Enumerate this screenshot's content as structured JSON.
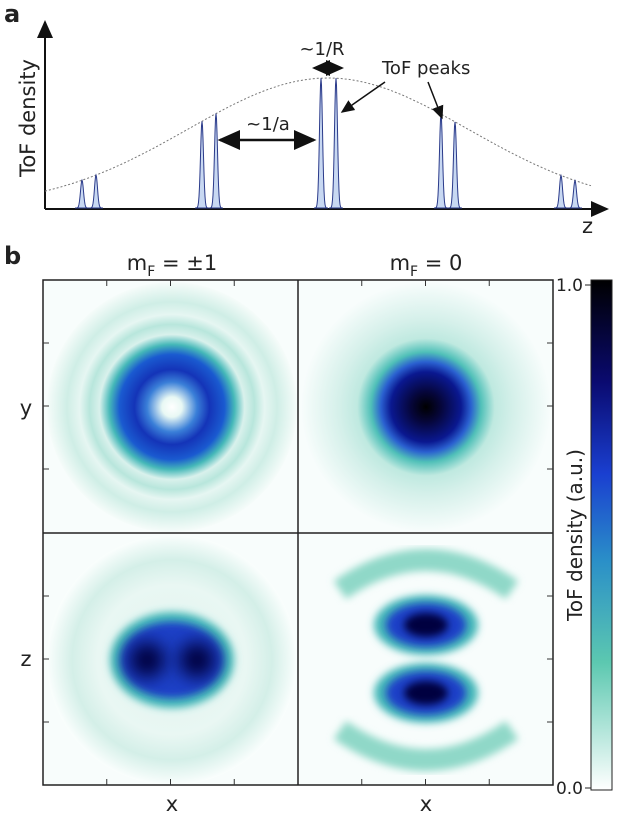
{
  "panel_a": {
    "label": "a",
    "y_label": "ToF density",
    "x_label": "z",
    "annotations": [
      "~1/R",
      "~1/a",
      "ToF peaks"
    ]
  },
  "panel_b": {
    "label": "b",
    "columns": [
      {
        "symbol": "m",
        "subscript": "F",
        "rest": " = ±1"
      },
      {
        "symbol": "m",
        "subscript": "F",
        "rest": " = 0"
      }
    ],
    "row_labels": [
      "y",
      "z"
    ],
    "x_labels": [
      "x",
      "x"
    ],
    "colorbar": {
      "label": "ToF density (a.u.)",
      "ticks": [
        {
          "value": 0,
          "label": "0.0"
        },
        {
          "value": 1,
          "label": "1.0"
        }
      ]
    }
  }
}
